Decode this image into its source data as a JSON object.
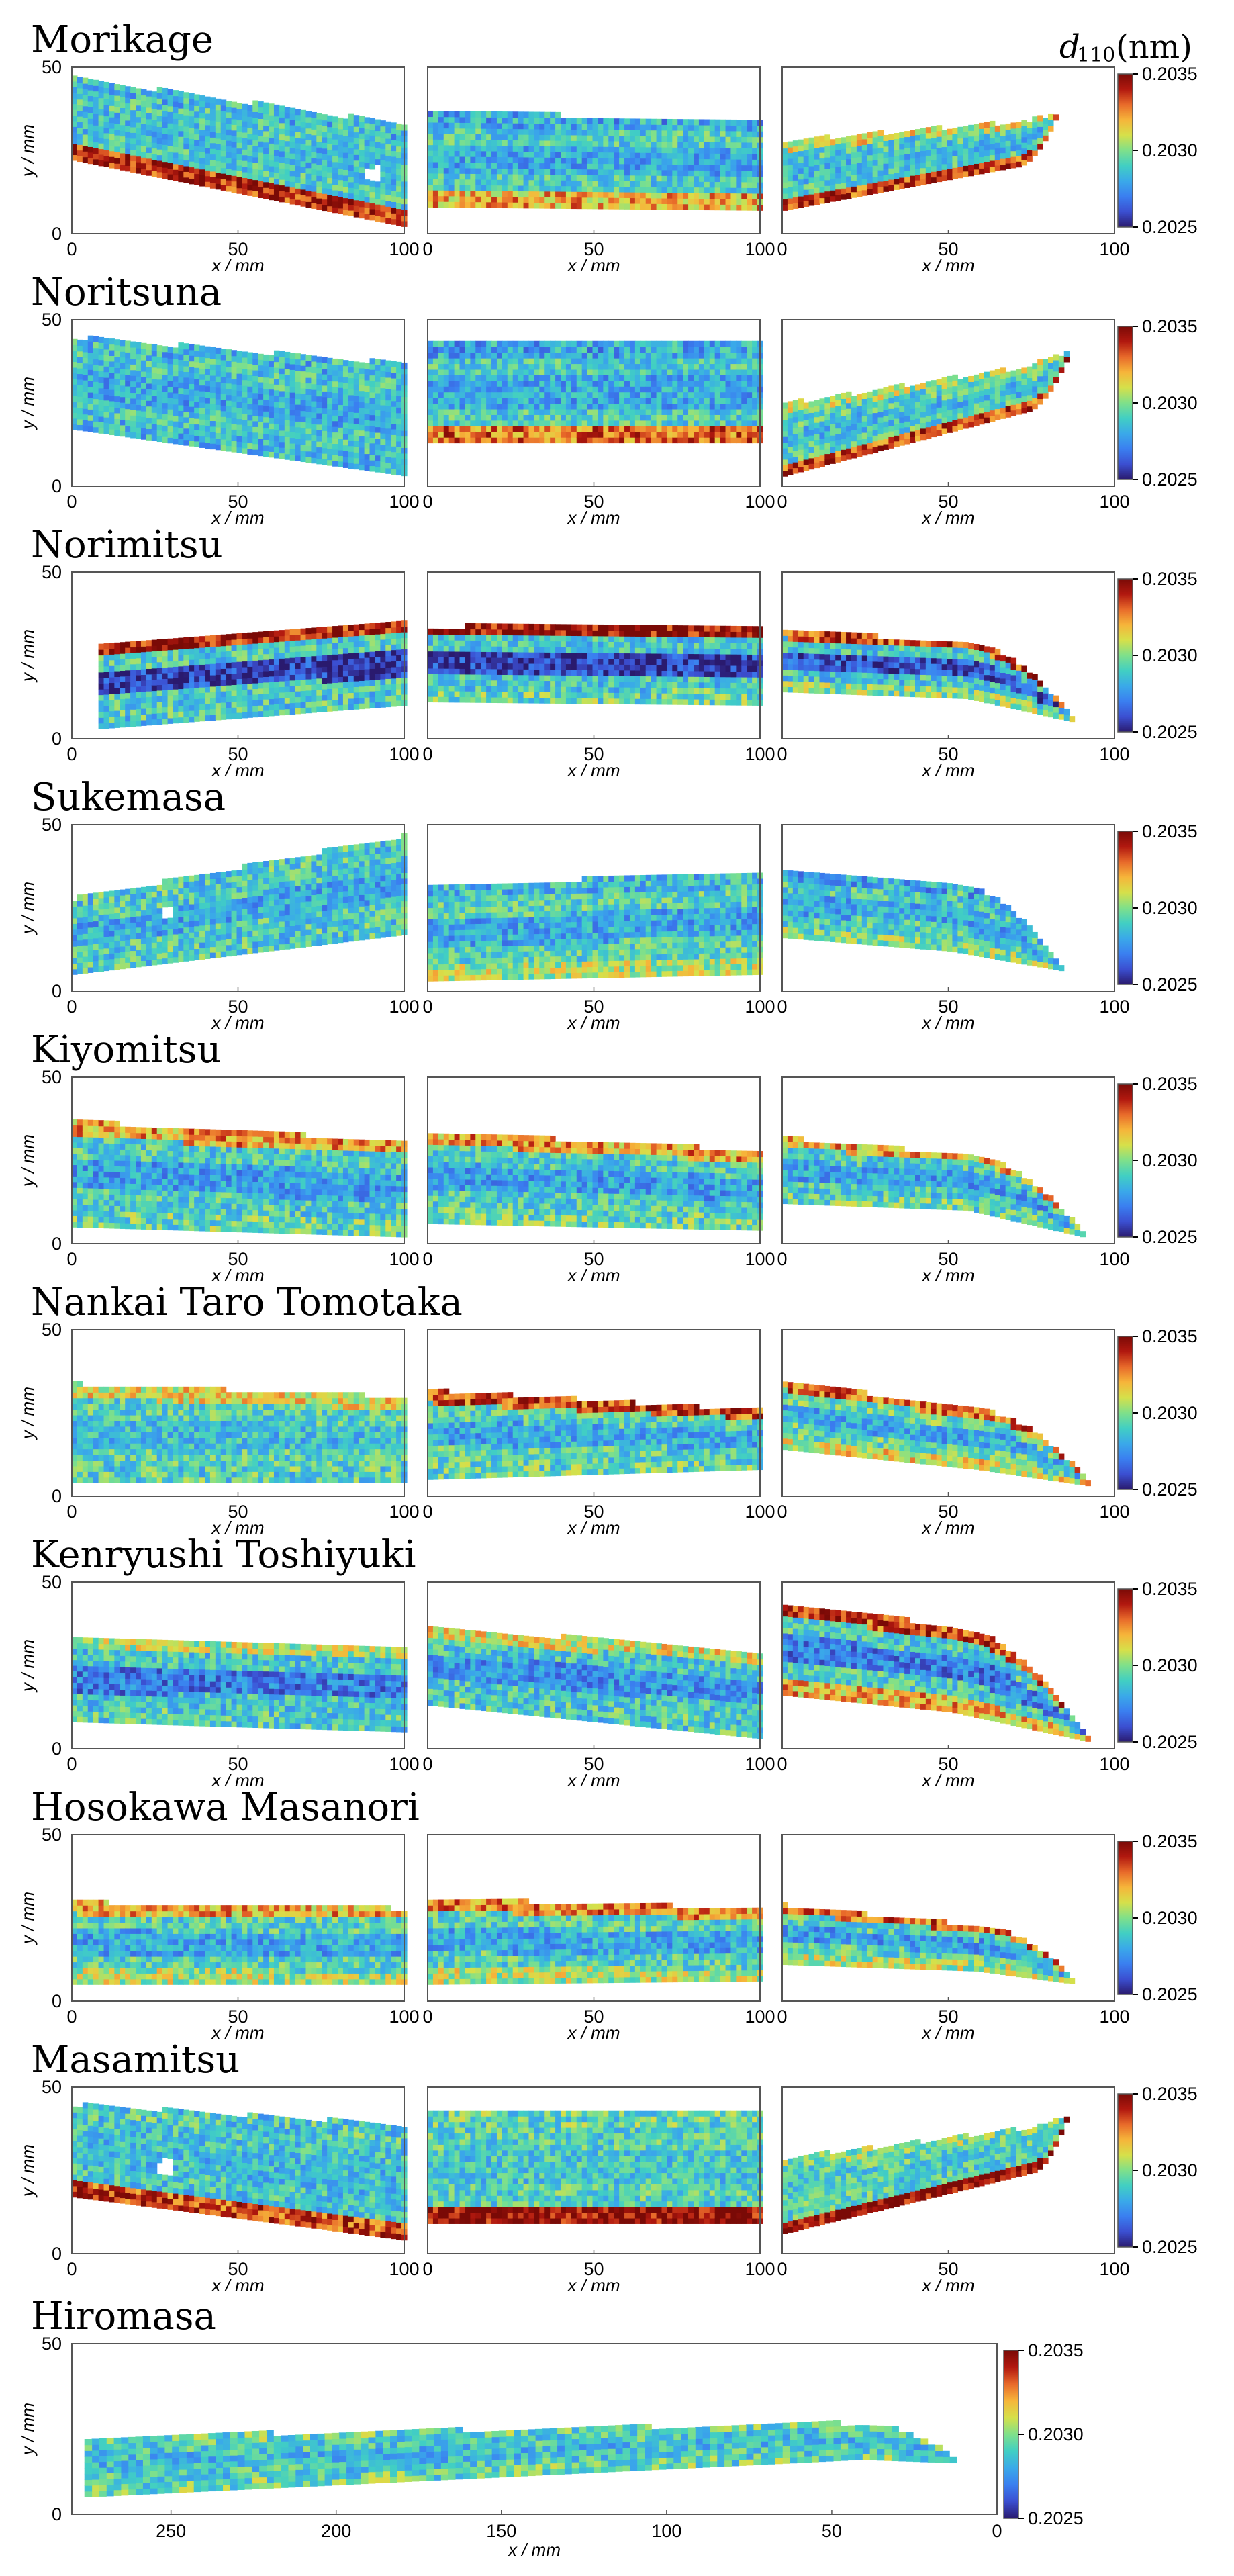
{
  "chart_data": {
    "type": "heatmap",
    "title": "d110 (nm)",
    "colorbar": {
      "label_symbol": "d",
      "label_subscript": "110",
      "label_unit": "(nm)",
      "min": 0.2025,
      "max": 0.2035,
      "ticks": [
        "0.2035",
        "0.2030",
        "0.2025"
      ],
      "tick_values": [
        0.2035,
        0.203,
        0.2025
      ],
      "colors": [
        "#2a1a6e",
        "#3b4fd1",
        "#3a7ff0",
        "#3aa9e9",
        "#41cfc3",
        "#7fe08a",
        "#d6e04a",
        "#f6b53a",
        "#e86a2a",
        "#b1180f",
        "#7a0a06"
      ]
    },
    "xlabel": "x / mm",
    "ylabel": "y / mm",
    "panel_xlim": [
      0,
      100
    ],
    "panel_ylim": [
      0,
      50
    ],
    "panel_xticks": [
      "0",
      "50",
      "100"
    ],
    "panel_yticks": [
      "0",
      "50"
    ],
    "swords": [
      {
        "name": "Morikage",
        "panels": [
          {
            "x0": 0,
            "x1": 100,
            "top0": 46,
            "top1": 32,
            "bot0": 22,
            "bot1": 2,
            "tip_x": null,
            "tip_y": null,
            "base": 0.4,
            "edge_top": 0.35,
            "edge_bot": 0.9,
            "core": 0.35,
            "hole_x": 90,
            "hole_y": 17
          },
          {
            "x0": 0,
            "x1": 100,
            "top0": 36,
            "top1": 33,
            "bot0": 8,
            "bot1": 7,
            "tip_x": null,
            "tip_y": null,
            "base": 0.4,
            "edge_top": 0.3,
            "edge_bot": 0.7,
            "core": 0.3
          },
          {
            "x0": 0,
            "x1": 70,
            "top0": 27,
            "top1": 33,
            "bot0": 7,
            "bot1": 20,
            "tip_x": 82,
            "tip_y": 35,
            "base": 0.4,
            "edge_top": 0.6,
            "edge_bot": 0.85,
            "core": 0.35
          }
        ]
      },
      {
        "name": "Noritsuna",
        "panels": [
          {
            "x0": 0,
            "x1": 100,
            "top0": 44,
            "top1": 36,
            "bot0": 17,
            "bot1": 3,
            "tip_x": null,
            "tip_y": null,
            "base": 0.38,
            "edge_top": 0.35,
            "edge_bot": 0.35,
            "core": 0.3
          },
          {
            "x0": 0,
            "x1": 100,
            "top0": 42,
            "top1": 42,
            "bot0": 13,
            "bot1": 13,
            "tip_x": null,
            "tip_y": null,
            "base": 0.4,
            "edge_top": 0.3,
            "edge_bot": 0.8,
            "core": 0.3
          },
          {
            "x0": 0,
            "x1": 72,
            "top0": 24,
            "top1": 35,
            "bot0": 3,
            "bot1": 22,
            "tip_x": 86,
            "tip_y": 40,
            "base": 0.42,
            "edge_top": 0.55,
            "edge_bot": 0.85,
            "core": 0.35
          }
        ]
      },
      {
        "name": "Norimitsu",
        "panels": [
          {
            "x0": 8,
            "x1": 100,
            "top0": 28,
            "top1": 34,
            "bot0": 3,
            "bot1": 10,
            "tip_x": null,
            "tip_y": null,
            "base": 0.4,
            "edge_top": 0.92,
            "edge_bot": 0.4,
            "core": 0.08
          },
          {
            "x0": 0,
            "x1": 100,
            "top0": 33,
            "top1": 33,
            "bot0": 11,
            "bot1": 10,
            "tip_x": null,
            "tip_y": null,
            "base": 0.38,
            "edge_top": 0.95,
            "edge_bot": 0.45,
            "core": 0.08
          },
          {
            "x0": 0,
            "x1": 55,
            "top0": 32,
            "top1": 28,
            "bot0": 14,
            "bot1": 12,
            "tip_x": 87,
            "tip_y": 5,
            "base": 0.38,
            "edge_top": 0.85,
            "edge_bot": 0.5,
            "core": 0.12
          }
        ]
      },
      {
        "name": "Sukemasa",
        "panels": [
          {
            "x0": 0,
            "x1": 100,
            "top0": 27,
            "top1": 46,
            "bot0": 5,
            "bot1": 17,
            "tip_x": null,
            "tip_y": null,
            "base": 0.4,
            "edge_top": 0.4,
            "edge_bot": 0.4,
            "core": 0.3,
            "hole_x": 28,
            "hole_y": 23
          },
          {
            "x0": 0,
            "x1": 100,
            "top0": 31,
            "top1": 35,
            "bot0": 3,
            "bot1": 5,
            "tip_x": null,
            "tip_y": null,
            "base": 0.42,
            "edge_top": 0.35,
            "edge_bot": 0.55,
            "core": 0.3
          },
          {
            "x0": 0,
            "x1": 50,
            "top0": 35,
            "top1": 32,
            "bot0": 16,
            "bot1": 12,
            "tip_x": 84,
            "tip_y": 6,
            "base": 0.4,
            "edge_top": 0.3,
            "edge_bot": 0.5,
            "core": 0.3
          }
        ]
      },
      {
        "name": "Kiyomitsu",
        "panels": [
          {
            "x0": 0,
            "x1": 100,
            "top0": 36,
            "top1": 30,
            "bot0": 5,
            "bot1": 2,
            "tip_x": null,
            "tip_y": null,
            "base": 0.4,
            "edge_top": 0.72,
            "edge_bot": 0.45,
            "core": 0.28
          },
          {
            "x0": 0,
            "x1": 100,
            "top0": 33,
            "top1": 27,
            "bot0": 6,
            "bot1": 4,
            "tip_x": null,
            "tip_y": null,
            "base": 0.4,
            "edge_top": 0.72,
            "edge_bot": 0.45,
            "core": 0.28
          },
          {
            "x0": 0,
            "x1": 55,
            "top0": 31,
            "top1": 26,
            "bot0": 12,
            "bot1": 10,
            "tip_x": 90,
            "tip_y": 2,
            "base": 0.4,
            "edge_top": 0.7,
            "edge_bot": 0.45,
            "core": 0.28
          }
        ]
      },
      {
        "name": "Nankai Taro Tomotaka",
        "panels": [
          {
            "x0": 0,
            "x1": 100,
            "top0": 33,
            "top1": 29,
            "bot0": 4,
            "bot1": 4,
            "tip_x": null,
            "tip_y": null,
            "base": 0.42,
            "edge_top": 0.62,
            "edge_bot": 0.42,
            "core": 0.35
          },
          {
            "x0": 0,
            "x1": 100,
            "top0": 31,
            "top1": 25,
            "bot0": 5,
            "bot1": 8,
            "tip_x": null,
            "tip_y": null,
            "base": 0.42,
            "edge_top": 0.85,
            "edge_bot": 0.45,
            "core": 0.3
          },
          {
            "x0": 0,
            "x1": 58,
            "top0": 34,
            "top1": 25,
            "bot0": 14,
            "bot1": 8,
            "tip_x": 92,
            "tip_y": 3,
            "base": 0.45,
            "edge_top": 0.8,
            "edge_bot": 0.62,
            "core": 0.3
          }
        ]
      },
      {
        "name": "Kenryushi Toshiyuki",
        "panels": [
          {
            "x0": 0,
            "x1": 100,
            "top0": 32,
            "top1": 30,
            "bot0": 8,
            "bot1": 5,
            "tip_x": null,
            "tip_y": null,
            "base": 0.38,
            "edge_top": 0.55,
            "edge_bot": 0.4,
            "core": 0.2
          },
          {
            "x0": 0,
            "x1": 100,
            "top0": 36,
            "top1": 28,
            "bot0": 13,
            "bot1": 3,
            "tip_x": null,
            "tip_y": null,
            "base": 0.38,
            "edge_top": 0.6,
            "edge_bot": 0.4,
            "core": 0.25
          },
          {
            "x0": 0,
            "x1": 50,
            "top0": 43,
            "top1": 36,
            "bot0": 16,
            "bot1": 11,
            "tip_x": 92,
            "tip_y": 2,
            "base": 0.4,
            "edge_top": 0.85,
            "edge_bot": 0.7,
            "core": 0.2
          }
        ]
      },
      {
        "name": "Hosokawa Masanori",
        "panels": [
          {
            "x0": 0,
            "x1": 100,
            "top0": 29,
            "top1": 27,
            "bot0": 5,
            "bot1": 5,
            "tip_x": null,
            "tip_y": null,
            "base": 0.42,
            "edge_top": 0.7,
            "edge_bot": 0.55,
            "core": 0.3
          },
          {
            "x0": 0,
            "x1": 100,
            "top0": 30,
            "top1": 27,
            "bot0": 5,
            "bot1": 6,
            "tip_x": null,
            "tip_y": null,
            "base": 0.42,
            "edge_top": 0.75,
            "edge_bot": 0.55,
            "core": 0.3
          },
          {
            "x0": 0,
            "x1": 58,
            "top0": 28,
            "top1": 22,
            "bot0": 11,
            "bot1": 9,
            "tip_x": 88,
            "tip_y": 5,
            "base": 0.42,
            "edge_top": 0.8,
            "edge_bot": 0.55,
            "core": 0.28
          }
        ]
      },
      {
        "name": "Masamitsu",
        "panels": [
          {
            "x0": 0,
            "x1": 100,
            "top0": 44,
            "top1": 38,
            "bot0": 17,
            "bot1": 4,
            "tip_x": null,
            "tip_y": null,
            "base": 0.38,
            "edge_top": 0.4,
            "edge_bot": 0.85,
            "core": 0.35,
            "hole_x": 27,
            "hole_y": 25
          },
          {
            "x0": 0,
            "x1": 100,
            "top0": 42,
            "top1": 42,
            "bot0": 9,
            "bot1": 9,
            "tip_x": null,
            "tip_y": null,
            "base": 0.42,
            "edge_top": 0.45,
            "edge_bot": 0.97,
            "core": 0.38
          },
          {
            "x0": 0,
            "x1": 74,
            "top0": 28,
            "top1": 37,
            "bot0": 6,
            "bot1": 24,
            "tip_x": 85,
            "tip_y": 40,
            "base": 0.42,
            "edge_top": 0.5,
            "edge_bot": 0.98,
            "core": 0.4
          }
        ]
      }
    ],
    "long_panel": {
      "name": "Hiromasa",
      "xlim": [
        280,
        0
      ],
      "ylim": [
        0,
        50
      ],
      "xticks": [
        "250",
        "200",
        "150",
        "100",
        "50",
        "0"
      ],
      "yticks": [
        "0",
        "50"
      ],
      "x0": 275,
      "x1": 40,
      "top0": 22,
      "top1": 26,
      "bot0": 5,
      "bot1": 16,
      "tip_x": 10,
      "tip_y": 15,
      "base": 0.4,
      "edge_top": 0.45,
      "edge_bot": 0.45,
      "core": 0.35
    }
  }
}
